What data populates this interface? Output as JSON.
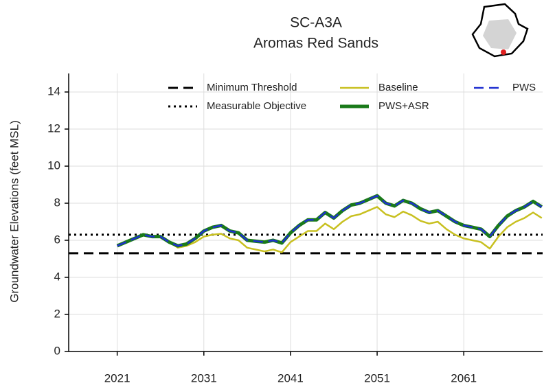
{
  "chart_data": {
    "type": "line",
    "title": "SC-A3A",
    "subtitle": "Aromas Red Sands",
    "y_label": "Groundwater Elevations (feet MSL)",
    "x": [
      2021,
      2022,
      2023,
      2024,
      2025,
      2026,
      2027,
      2028,
      2029,
      2030,
      2031,
      2032,
      2033,
      2034,
      2035,
      2036,
      2037,
      2038,
      2039,
      2040,
      2041,
      2042,
      2043,
      2044,
      2045,
      2046,
      2047,
      2048,
      2049,
      2050,
      2051,
      2052,
      2053,
      2054,
      2055,
      2056,
      2057,
      2058,
      2059,
      2060,
      2061,
      2062,
      2063,
      2064,
      2065,
      2066,
      2067,
      2068,
      2069,
      2070
    ],
    "xlim": [
      2015.4,
      2070.1
    ],
    "xticks": [
      2021,
      2031,
      2041,
      2051,
      2061
    ],
    "ylim": [
      0,
      15
    ],
    "yticks": [
      0,
      2,
      4,
      6,
      8,
      10,
      12,
      14
    ],
    "grid": true,
    "hlines": [
      {
        "name": "Minimum Threshold",
        "value": 5.3,
        "color": "#000000",
        "style": "dashed"
      },
      {
        "name": "Measurable Objective",
        "value": 6.3,
        "color": "#000000",
        "style": "dotted"
      }
    ],
    "series": [
      {
        "name": "Baseline",
        "color": "#c8c020",
        "style": "solid",
        "width": 2.5,
        "values": [
          5.7,
          5.9,
          6.1,
          6.3,
          6.2,
          6.2,
          5.9,
          5.6,
          5.7,
          5.9,
          6.2,
          6.3,
          6.35,
          6.1,
          6.0,
          5.6,
          5.5,
          5.4,
          5.5,
          5.35,
          5.9,
          6.2,
          6.5,
          6.5,
          6.9,
          6.6,
          7.0,
          7.3,
          7.4,
          7.6,
          7.8,
          7.4,
          7.25,
          7.55,
          7.35,
          7.05,
          6.9,
          7.0,
          6.6,
          6.3,
          6.1,
          6.0,
          5.9,
          5.55,
          6.2,
          6.7,
          7.0,
          7.2,
          7.5,
          7.2
        ]
      },
      {
        "name": "PWS+ASR",
        "color": "#1a7a1a",
        "style": "solid",
        "width": 5,
        "values": [
          5.7,
          5.9,
          6.1,
          6.3,
          6.2,
          6.2,
          5.9,
          5.7,
          5.8,
          6.1,
          6.5,
          6.7,
          6.8,
          6.5,
          6.4,
          6.0,
          5.95,
          5.9,
          6.0,
          5.85,
          6.4,
          6.8,
          7.1,
          7.1,
          7.5,
          7.2,
          7.6,
          7.9,
          8.0,
          8.2,
          8.4,
          8.0,
          7.85,
          8.15,
          8.0,
          7.7,
          7.5,
          7.6,
          7.3,
          7.0,
          6.8,
          6.7,
          6.6,
          6.2,
          6.8,
          7.3,
          7.6,
          7.8,
          8.1,
          7.8
        ]
      },
      {
        "name": "PWS",
        "color": "#1f2fd0",
        "style": "dashed",
        "width": 2.5,
        "values": [
          5.7,
          5.9,
          6.1,
          6.3,
          6.2,
          6.2,
          5.9,
          5.7,
          5.8,
          6.1,
          6.5,
          6.7,
          6.8,
          6.5,
          6.4,
          6.0,
          5.95,
          5.9,
          6.0,
          5.85,
          6.4,
          6.8,
          7.1,
          7.1,
          7.5,
          7.2,
          7.6,
          7.9,
          8.0,
          8.2,
          8.4,
          8.0,
          7.85,
          8.15,
          8.0,
          7.7,
          7.5,
          7.6,
          7.3,
          7.0,
          6.8,
          6.7,
          6.6,
          6.2,
          6.8,
          7.3,
          7.6,
          7.8,
          8.1,
          7.8
        ]
      }
    ]
  }
}
